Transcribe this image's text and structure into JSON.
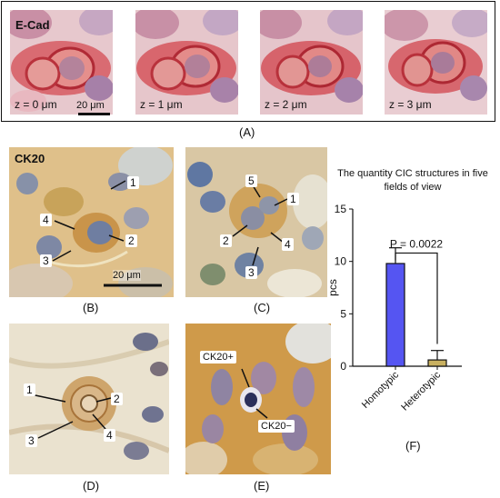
{
  "panel_a": {
    "stain": "E-Cad",
    "scale_bar": "20 μm",
    "tiles": [
      {
        "z": "z = 0 μm"
      },
      {
        "z": "z = 1 μm"
      },
      {
        "z": "z = 2 μm"
      },
      {
        "z": "z = 3 μm"
      }
    ],
    "label": "(A)"
  },
  "panel_b": {
    "stain": "CK20",
    "scale_bar": "20 μm",
    "numbers": [
      "1",
      "2",
      "3",
      "4"
    ],
    "label": "(B)"
  },
  "panel_c": {
    "numbers": [
      "1",
      "2",
      "3",
      "4",
      "5"
    ],
    "label": "(C)"
  },
  "panel_d": {
    "numbers": [
      "1",
      "2",
      "3",
      "4"
    ],
    "label": "(D)"
  },
  "panel_e": {
    "tag_pos": "CK20+",
    "tag_neg": "CK20−",
    "label": "(E)"
  },
  "panel_f": {
    "label": "(F)"
  },
  "chart_data": {
    "type": "bar",
    "title": "The quantity CIC structures in five fields of view",
    "ylabel": "pcs",
    "categories": [
      "Homotypic",
      "Heterotypic"
    ],
    "values": [
      9.8,
      0.6
    ],
    "errors": [
      1.5,
      0.9
    ],
    "ylim": [
      0,
      15
    ],
    "yticks": [
      "0",
      "5",
      "10",
      "15"
    ],
    "annotation": "P = 0.0022",
    "colors": [
      "#5555f2",
      "#c8b060"
    ]
  }
}
